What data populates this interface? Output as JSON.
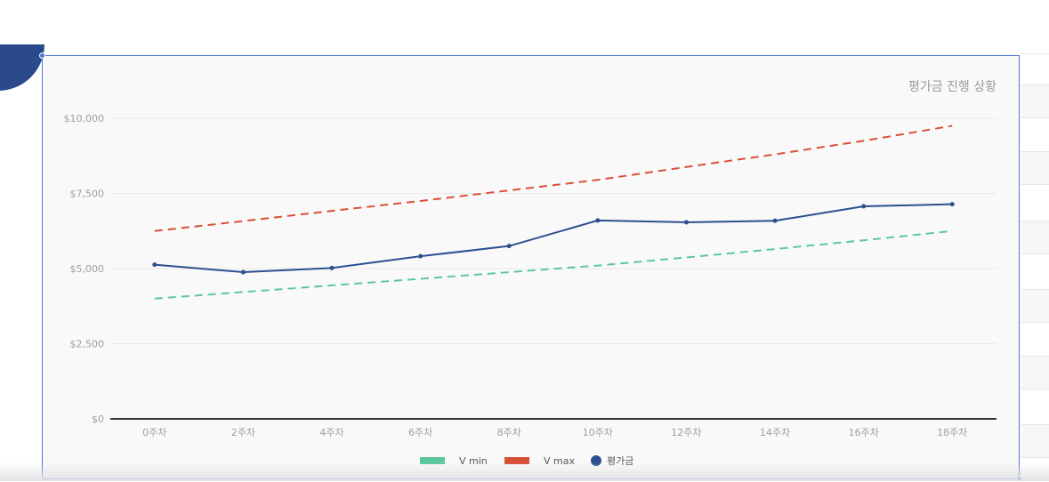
{
  "chart_data": {
    "type": "line",
    "title": "평가금 진행 상황",
    "categories": [
      "0주차",
      "2주차",
      "4주차",
      "6주차",
      "8주차",
      "10주차",
      "12주차",
      "14주차",
      "16주차",
      "18주차"
    ],
    "y_ticks": [
      "$0",
      "$2,500",
      "$5,000",
      "$7,500",
      "$10,000"
    ],
    "ylim": [
      0,
      10000
    ],
    "grid": true,
    "legend_position": "bottom",
    "series": [
      {
        "name": "V min",
        "style": "dashed",
        "color": "#5cc79d",
        "values": [
          4000,
          4220,
          4440,
          4660,
          4880,
          5100,
          5370,
          5650,
          5940,
          6250
        ]
      },
      {
        "name": "V max",
        "style": "dashed",
        "color": "#d9503a",
        "values": [
          6250,
          6580,
          6920,
          7250,
          7600,
          7950,
          8380,
          8800,
          9250,
          9750
        ]
      },
      {
        "name": "평가금",
        "style": "solid-markers",
        "color": "#2d4f91",
        "values": [
          5130,
          4880,
          5020,
          5410,
          5750,
          6600,
          6540,
          6590,
          7070,
          7140
        ]
      }
    ]
  }
}
